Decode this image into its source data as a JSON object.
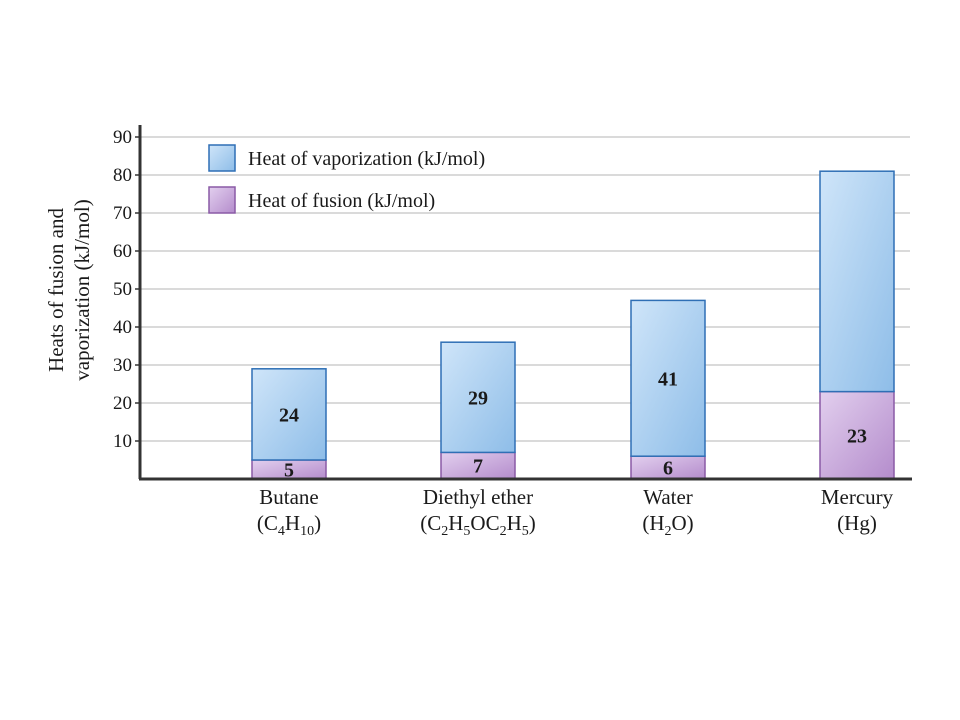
{
  "chart_data": {
    "type": "bar",
    "stacked": true,
    "ylabel_line1": "Heats of fusion and",
    "ylabel_line2": "vaporization (kJ/mol)",
    "ylim": [
      0,
      90
    ],
    "yticks": [
      10,
      20,
      30,
      40,
      50,
      60,
      70,
      80,
      90
    ],
    "grid": true,
    "legend_placement": "top-left",
    "categories": [
      {
        "name": "Butane",
        "formula": [
          {
            "t": "(C"
          },
          {
            "t": "4",
            "sub": true
          },
          {
            "t": "H"
          },
          {
            "t": "10",
            "sub": true
          },
          {
            "t": ")"
          }
        ]
      },
      {
        "name": "Diethyl ether",
        "formula": [
          {
            "t": "(C"
          },
          {
            "t": "2",
            "sub": true
          },
          {
            "t": "H"
          },
          {
            "t": "5",
            "sub": true
          },
          {
            "t": "OC"
          },
          {
            "t": "2",
            "sub": true
          },
          {
            "t": "H"
          },
          {
            "t": "5",
            "sub": true
          },
          {
            "t": ")"
          }
        ]
      },
      {
        "name": "Water",
        "formula": [
          {
            "t": "(H"
          },
          {
            "t": "2",
            "sub": true
          },
          {
            "t": "O)"
          }
        ]
      },
      {
        "name": "Mercury",
        "formula": [
          {
            "t": "(Hg)"
          }
        ]
      }
    ],
    "series": [
      {
        "name": "Heat of fusion (kJ/mol)",
        "values": [
          5,
          7,
          6,
          23
        ],
        "labels": [
          "5",
          "7",
          "6",
          "23"
        ],
        "color": "#c4a3d4",
        "stroke": "#8a5aa6"
      },
      {
        "name": "Heat of vaporization (kJ/mol)",
        "values": [
          24,
          29,
          41,
          58
        ],
        "labels": [
          "24",
          "29",
          "41",
          ""
        ],
        "color": "#a9cdee",
        "stroke": "#2f6fb5"
      }
    ],
    "legend_order": [
      1,
      0
    ]
  }
}
